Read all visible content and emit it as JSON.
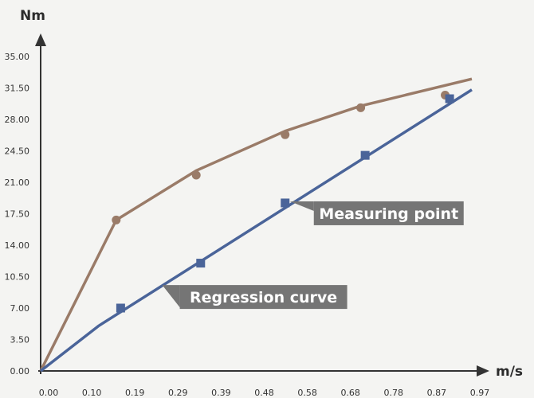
{
  "chart_data": {
    "type": "line",
    "xlabel": "m/s",
    "ylabel": "Nm",
    "xlim": [
      0.0,
      0.97
    ],
    "ylim": [
      0.0,
      35.0
    ],
    "x_ticks": [
      "0.00",
      "0.10",
      "0.19",
      "0.29",
      "0.39",
      "0.48",
      "0.58",
      "0.68",
      "0.78",
      "0.87",
      "0.97"
    ],
    "y_ticks": [
      "0.00",
      "3.50",
      "7.00",
      "10.50",
      "14.00",
      "17.50",
      "21.00",
      "24.50",
      "28.00",
      "31.50",
      "35.00"
    ],
    "grid": false,
    "series": [
      {
        "color": "#9a7b68",
        "marker": "circle",
        "line": {
          "x": [
            0.0,
            0.17,
            0.35,
            0.55,
            0.72,
            0.97
          ],
          "y": [
            0.0,
            16.8,
            22.3,
            26.7,
            29.5,
            32.5
          ]
        },
        "points": {
          "x": [
            0.17,
            0.35,
            0.55,
            0.72,
            0.91
          ],
          "y": [
            16.8,
            21.8,
            26.3,
            29.3,
            30.7
          ]
        }
      },
      {
        "color": "#4a6499",
        "marker": "square",
        "line": {
          "x": [
            0.0,
            0.13,
            0.97
          ],
          "y": [
            0.0,
            5.0,
            31.3
          ]
        },
        "points": {
          "x": [
            0.18,
            0.36,
            0.55,
            0.73,
            0.92
          ],
          "y": [
            7.0,
            12.0,
            18.7,
            24.0,
            30.3
          ]
        }
      }
    ],
    "annotations": [
      {
        "text": "Measuring point",
        "series_index": 1,
        "point_index": 2
      },
      {
        "text": "Regression curve",
        "series_index": 1,
        "x": 0.27
      }
    ]
  }
}
